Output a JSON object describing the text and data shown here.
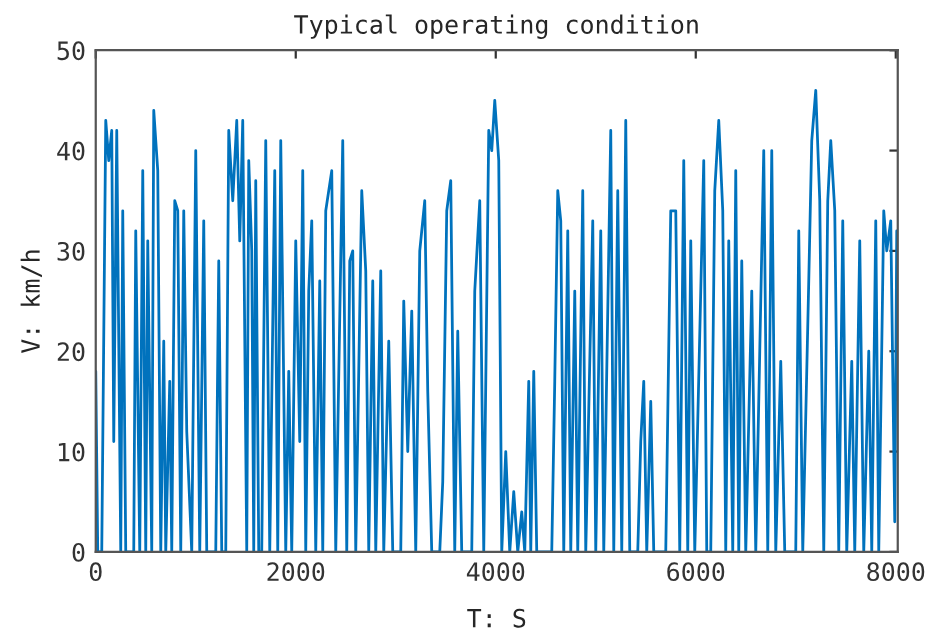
{
  "chart_data": {
    "type": "line",
    "title": "Typical operating condition",
    "xlabel": "T: S",
    "ylabel": "V: km/h",
    "xlim": [
      0,
      8020
    ],
    "ylim": [
      0,
      50
    ],
    "xticks": [
      0,
      2000,
      4000,
      6000,
      8000
    ],
    "yticks": [
      0,
      10,
      20,
      30,
      40,
      50
    ],
    "grid": false,
    "legend": false,
    "marker": "none",
    "line_style": "solid",
    "x": [
      0,
      20,
      60,
      100,
      130,
      160,
      180,
      210,
      250,
      270,
      300,
      380,
      400,
      440,
      470,
      500,
      520,
      560,
      580,
      620,
      650,
      680,
      700,
      740,
      760,
      790,
      820,
      850,
      880,
      910,
      960,
      1000,
      1040,
      1080,
      1110,
      1200,
      1230,
      1260,
      1300,
      1330,
      1370,
      1410,
      1440,
      1470,
      1510,
      1530,
      1560,
      1580,
      1600,
      1630,
      1660,
      1700,
      1740,
      1790,
      1820,
      1850,
      1900,
      1930,
      1960,
      2000,
      2040,
      2070,
      2100,
      2130,
      2160,
      2200,
      2240,
      2270,
      2300,
      2360,
      2400,
      2470,
      2510,
      2540,
      2570,
      2600,
      2660,
      2700,
      2730,
      2770,
      2800,
      2850,
      2880,
      2930,
      2970,
      3050,
      3080,
      3120,
      3160,
      3200,
      3240,
      3290,
      3320,
      3360,
      3440,
      3470,
      3510,
      3550,
      3590,
      3620,
      3660,
      3760,
      3790,
      3840,
      3880,
      3930,
      3960,
      3990,
      4030,
      4060,
      4100,
      4140,
      4180,
      4220,
      4260,
      4290,
      4330,
      4350,
      4380,
      4410,
      4560,
      4590,
      4620,
      4650,
      4680,
      4720,
      4750,
      4790,
      4820,
      4870,
      4900,
      4970,
      5000,
      5050,
      5080,
      5150,
      5180,
      5220,
      5260,
      5300,
      5340,
      5420,
      5450,
      5480,
      5510,
      5550,
      5580,
      5700,
      5750,
      5800,
      5840,
      5880,
      5920,
      5950,
      5990,
      6080,
      6110,
      6150,
      6190,
      6230,
      6270,
      6300,
      6330,
      6370,
      6400,
      6430,
      6460,
      6500,
      6560,
      6600,
      6640,
      6680,
      6720,
      6760,
      6800,
      6850,
      6890,
      7000,
      7030,
      7070,
      7130,
      7160,
      7200,
      7240,
      7280,
      7320,
      7350,
      7390,
      7430,
      7470,
      7510,
      7560,
      7590,
      7640,
      7680,
      7730,
      7760,
      7800,
      7830,
      7880,
      7910,
      7950,
      7990,
      8010
    ],
    "series": [
      {
        "color": "#0072bd",
        "values": [
          18,
          0,
          0,
          43,
          39,
          42,
          11,
          42,
          0,
          34,
          0,
          0,
          32,
          0,
          38,
          0,
          31,
          0,
          44,
          38,
          0,
          21,
          0,
          17,
          0,
          35,
          34,
          0,
          34,
          12,
          0,
          40,
          0,
          33,
          0,
          0,
          29,
          0,
          0,
          42,
          35,
          43,
          31,
          43,
          0,
          39,
          30,
          0,
          37,
          0,
          0,
          41,
          0,
          38,
          0,
          41,
          0,
          18,
          0,
          31,
          11,
          38,
          0,
          26,
          33,
          0,
          27,
          0,
          34,
          38,
          0,
          41,
          0,
          29,
          30,
          0,
          36,
          28,
          0,
          27,
          0,
          28,
          0,
          21,
          0,
          0,
          25,
          10,
          24,
          0,
          30,
          35,
          16,
          0,
          0,
          7,
          34,
          37,
          0,
          22,
          0,
          0,
          26,
          35,
          0,
          42,
          40,
          45,
          39,
          0,
          10,
          0,
          6,
          0,
          4,
          0,
          17,
          0,
          18,
          0,
          0,
          17,
          36,
          33,
          0,
          32,
          0,
          26,
          0,
          36,
          0,
          33,
          0,
          32,
          0,
          42,
          0,
          36,
          0,
          43,
          0,
          0,
          11,
          17,
          0,
          15,
          0,
          0,
          34,
          34,
          0,
          39,
          0,
          31,
          0,
          39,
          0,
          0,
          36,
          43,
          34,
          0,
          31,
          0,
          38,
          0,
          29,
          0,
          26,
          0,
          20,
          40,
          0,
          40,
          0,
          19,
          0,
          0,
          32,
          0,
          27,
          41,
          46,
          35,
          0,
          35,
          41,
          34,
          0,
          33,
          0,
          19,
          0,
          31,
          0,
          20,
          0,
          33,
          0,
          34,
          30,
          33,
          3,
          32
        ]
      }
    ]
  }
}
